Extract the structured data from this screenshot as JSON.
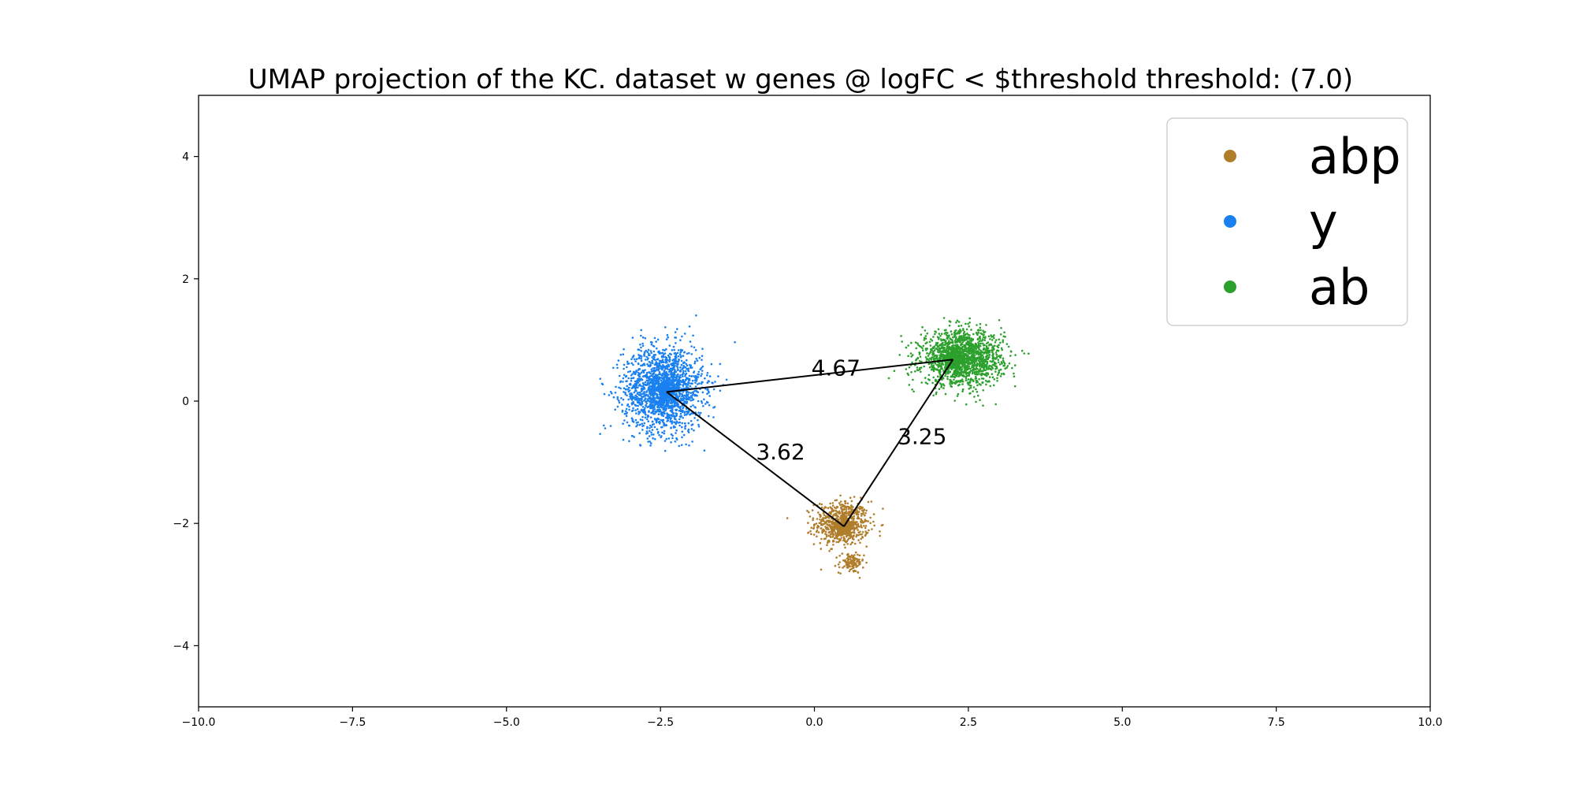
{
  "chart_data": {
    "type": "scatter",
    "title": "UMAP projection of the KC. dataset w genes @ logFC < $threshold threshold: (7.0)",
    "xlabel": "",
    "ylabel": "",
    "xlim": [
      -10,
      10
    ],
    "ylim": [
      -5,
      5
    ],
    "xticks": [
      -10.0,
      -7.5,
      -5.0,
      -2.5,
      0.0,
      2.5,
      5.0,
      7.5,
      10.0
    ],
    "xtick_labels": [
      "−10.0",
      "−7.5",
      "−5.0",
      "−2.5",
      "0.0",
      "2.5",
      "5.0",
      "7.5",
      "10.0"
    ],
    "yticks": [
      -4,
      -2,
      0,
      2,
      4
    ],
    "ytick_labels": [
      "−4",
      "−2",
      "0",
      "2",
      "4"
    ],
    "grid": false,
    "legend_position": "upper right",
    "series": [
      {
        "name": "abp",
        "color": "#b07d2b",
        "clusters": [
          {
            "center": [
              0.45,
              -2.0
            ],
            "spread": [
              0.22,
              0.18
            ],
            "count": 650
          },
          {
            "center": [
              0.6,
              -2.65
            ],
            "spread": [
              0.1,
              0.08
            ],
            "count": 110
          }
        ],
        "centroid": [
          0.48,
          -2.05
        ]
      },
      {
        "name": "y",
        "color": "#1a80f0",
        "clusters": [
          {
            "center": [
              -2.45,
              0.2
            ],
            "spread": [
              0.32,
              0.35
            ],
            "count": 1800
          }
        ],
        "centroid": [
          -2.4,
          0.15
        ]
      },
      {
        "name": "ab",
        "color": "#2ca02c",
        "clusters": [
          {
            "center": [
              2.4,
              0.7
            ],
            "spread": [
              0.33,
              0.22
            ],
            "count": 1600
          }
        ],
        "centroid": [
          2.25,
          0.68
        ]
      }
    ],
    "connections": [
      {
        "from": "y",
        "to": "ab",
        "label": "4.67",
        "label_pos": [
          0.35,
          0.52
        ]
      },
      {
        "from": "y",
        "to": "abp",
        "label": "3.62",
        "label_pos": [
          -0.55,
          -0.85
        ]
      },
      {
        "from": "ab",
        "to": "abp",
        "label": "3.25",
        "label_pos": [
          1.75,
          -0.6
        ]
      }
    ]
  }
}
